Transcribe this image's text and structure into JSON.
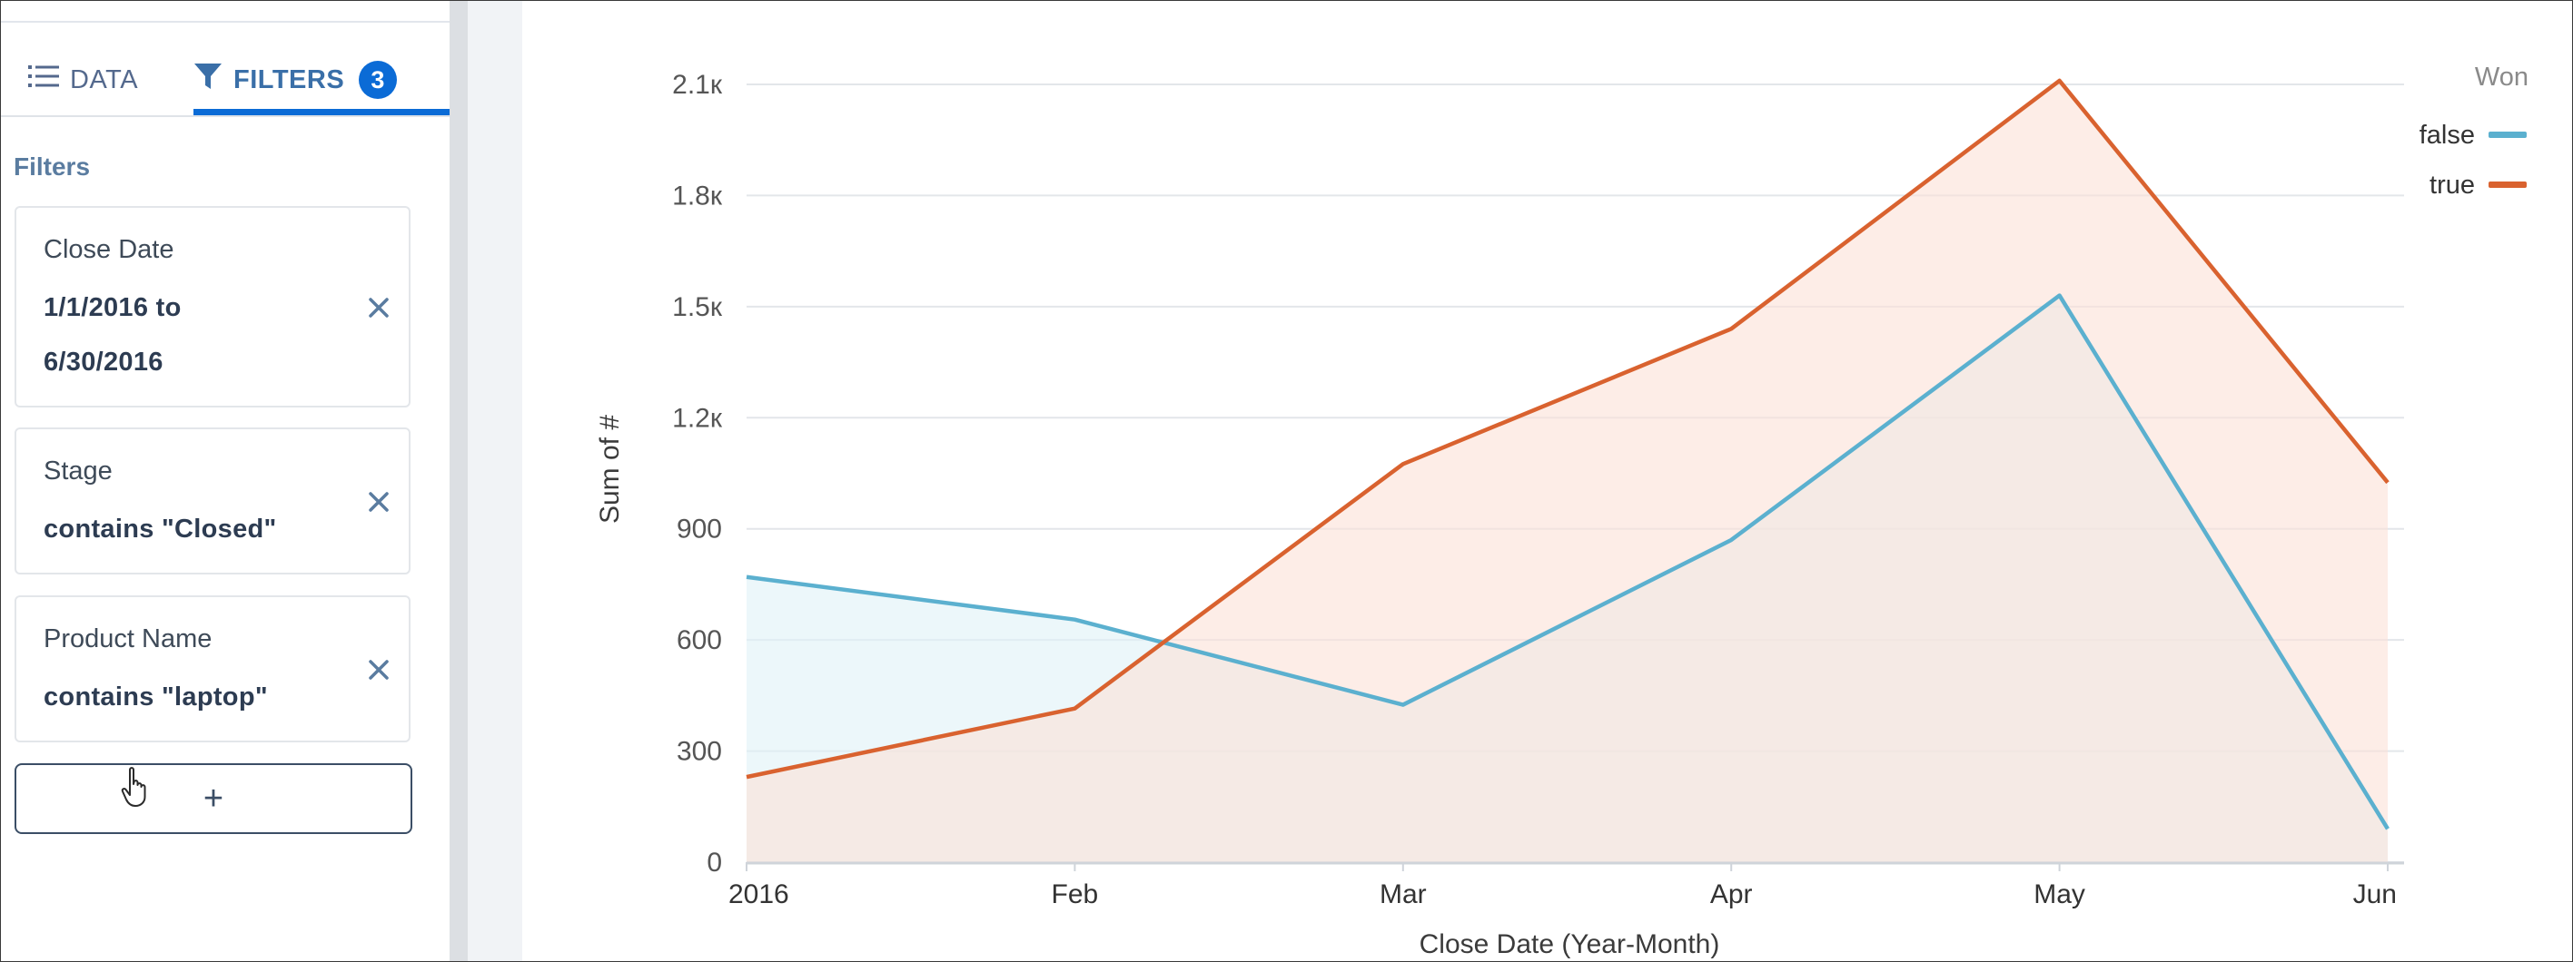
{
  "sidebar": {
    "tabs": [
      {
        "label": "DATA",
        "icon": "list-icon"
      },
      {
        "label": "FILTERS",
        "icon": "filter-funnel-icon",
        "badge": "3"
      }
    ],
    "filters_heading": "Filters",
    "filters": [
      {
        "label": "Close Date",
        "value_line1": "1/1/2016 to",
        "value_line2": "6/30/2016"
      },
      {
        "label": "Stage",
        "value_line1": "contains \"Closed\""
      },
      {
        "label": "Product Name",
        "value_line1": "contains \"laptop\""
      }
    ],
    "add_label": "+"
  },
  "colors": {
    "accent": "#0b6bd6",
    "series_false": "#5bb0cf",
    "series_true": "#d9622f",
    "fill_false": "#dff2f6",
    "fill_true": "#fbe1d7"
  },
  "chart_data": {
    "type": "area",
    "title": "",
    "xlabel": "Close Date (Year-Month)",
    "ylabel": "Sum of #",
    "categories": [
      "2016",
      "Feb",
      "Mar",
      "Apr",
      "May",
      "Jun"
    ],
    "ylim": [
      0,
      2100
    ],
    "yticks": [
      0,
      300,
      600,
      900,
      1200,
      1500,
      1800,
      2100
    ],
    "ytick_labels": [
      "0",
      "300",
      "600",
      "900",
      "1.2к",
      "1.5к",
      "1.8к",
      "2.1к"
    ],
    "grid": true,
    "legend": {
      "title": "Won",
      "position": "top-right"
    },
    "series": [
      {
        "name": "false",
        "values": [
          770,
          655,
          425,
          870,
          1530,
          90
        ]
      },
      {
        "name": "true",
        "values": [
          230,
          415,
          1075,
          1440,
          2110,
          1025
        ]
      }
    ]
  }
}
